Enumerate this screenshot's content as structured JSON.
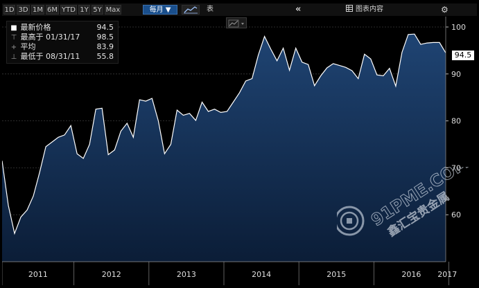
{
  "toolbar": {
    "ranges": [
      "1D",
      "3D",
      "1M",
      "6M",
      "YTD",
      "1Y",
      "5Y",
      "Max"
    ],
    "period_select": "每月 ▼",
    "chart_icon": "line-chart-icon",
    "table_label": "表",
    "collapse_icon": "double-chevron-left-icon",
    "table_content_label": "图表内容",
    "table_content_icon": "table-icon",
    "settings_icon": "gear-icon"
  },
  "legend": {
    "rows": [
      {
        "mark": "■",
        "label": "最新价格",
        "value": "94.5"
      },
      {
        "mark": "⊤",
        "label": "最高于 01/31/17",
        "value": "98.5"
      },
      {
        "mark": "+",
        "label": "平均",
        "value": "83.9"
      },
      {
        "mark": "⊥",
        "label": "最低于 08/31/11",
        "value": "55.8"
      }
    ]
  },
  "price_flag": "94.5",
  "watermark": {
    "brand": "91PME.COM",
    "brand_cn": "鑫汇宝贵金属"
  },
  "colors": {
    "background": "#000000",
    "area_top": "#1d3f6b",
    "area_bottom": "#0a1c35",
    "line": "#ffffff",
    "accent": "#1a4f8c"
  },
  "chart_data": {
    "type": "area",
    "ylim": [
      50,
      100
    ],
    "yticks": [
      60,
      70,
      80,
      90,
      100
    ],
    "year_labels": [
      "2011",
      "2012",
      "2013",
      "2014",
      "2015",
      "2016",
      "2017"
    ],
    "series": [
      {
        "values": [
          71.5,
          62,
          56,
          59.5,
          61,
          64,
          69,
          74.5,
          75.5,
          76.5,
          77,
          79,
          73,
          72,
          75,
          82.5,
          82.7,
          72.8,
          73.8,
          77.8,
          79.5,
          76.5,
          84.5,
          84.2,
          84.8,
          80,
          73,
          75,
          82.3,
          81.2,
          81.6,
          80.1,
          84,
          82,
          82.5,
          81.8,
          82,
          84,
          86,
          88.5,
          89,
          94,
          98,
          95.3,
          92.8,
          95.5,
          90.8,
          95.5,
          92.5,
          92,
          87.5,
          89.6,
          91.3,
          92.2,
          91.8,
          91.4,
          90.7,
          89,
          94.2,
          93.2,
          89.8,
          89.6,
          91.2,
          87.4,
          94.6,
          98.4,
          98.5,
          96.3,
          96.6,
          96.7,
          96.7,
          94.5
        ]
      }
    ]
  }
}
